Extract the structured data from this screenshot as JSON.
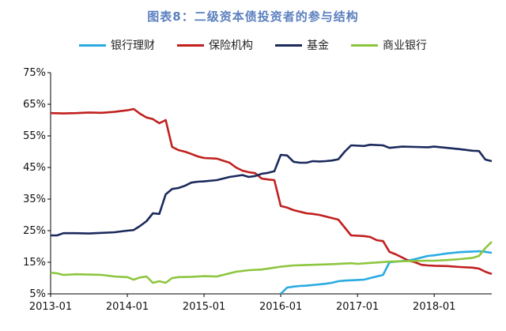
{
  "chart_data": {
    "type": "line",
    "title": "图表8：二级资本债投资者的参与结构",
    "xlabel": "",
    "ylabel": "",
    "x_ticks": [
      "2013-01",
      "2014-01",
      "2015-01",
      "2016-01",
      "2017-01",
      "2018-01"
    ],
    "y_ticks": [
      "5%",
      "15%",
      "25%",
      "35%",
      "45%",
      "55%",
      "65%",
      "75%"
    ],
    "ylim": [
      5,
      75
    ],
    "xlim": [
      "2013-01",
      "2018-10"
    ],
    "grid": false,
    "legend_position": "top",
    "series": [
      {
        "name": "银行理财",
        "color": "#29abe2",
        "points": [
          [
            "2016-01",
            5
          ],
          [
            "2016-02",
            7
          ],
          [
            "2016-03",
            7.3
          ],
          [
            "2016-04",
            7.5
          ],
          [
            "2016-05",
            7.6
          ],
          [
            "2016-06",
            7.8
          ],
          [
            "2016-07",
            8
          ],
          [
            "2016-08",
            8.2
          ],
          [
            "2016-09",
            8.5
          ],
          [
            "2016-10",
            9
          ],
          [
            "2016-11",
            9.2
          ],
          [
            "2016-12",
            9.3
          ],
          [
            "2017-01",
            9.4
          ],
          [
            "2017-02",
            9.5
          ],
          [
            "2017-03",
            10
          ],
          [
            "2017-04",
            10.5
          ],
          [
            "2017-05",
            11
          ],
          [
            "2017-06",
            15
          ],
          [
            "2017-07",
            15.2
          ],
          [
            "2017-08",
            15.4
          ],
          [
            "2017-09",
            15.6
          ],
          [
            "2017-10",
            16
          ],
          [
            "2017-11",
            16.5
          ],
          [
            "2017-12",
            17
          ],
          [
            "2018-01",
            17.2
          ],
          [
            "2018-02",
            17.5
          ],
          [
            "2018-03",
            17.8
          ],
          [
            "2018-04",
            18
          ],
          [
            "2018-05",
            18.2
          ],
          [
            "2018-06",
            18.3
          ],
          [
            "2018-07",
            18.4
          ],
          [
            "2018-08",
            18.5
          ],
          [
            "2018-09",
            18.3
          ],
          [
            "2018-10",
            18
          ]
        ]
      },
      {
        "name": "保险机构",
        "color": "#c0201e",
        "points": [
          [
            "2013-01",
            62.2
          ],
          [
            "2013-03",
            62.1
          ],
          [
            "2013-05",
            62.2
          ],
          [
            "2013-07",
            62.4
          ],
          [
            "2013-09",
            62.3
          ],
          [
            "2013-11",
            62.6
          ],
          [
            "2014-01",
            63.1
          ],
          [
            "2014-02",
            63.5
          ],
          [
            "2014-03",
            62
          ],
          [
            "2014-04",
            60.8
          ],
          [
            "2014-05",
            60.3
          ],
          [
            "2014-06",
            59
          ],
          [
            "2014-07",
            60
          ],
          [
            "2014-08",
            51.5
          ],
          [
            "2014-09",
            50.5
          ],
          [
            "2014-10",
            50
          ],
          [
            "2014-11",
            49.3
          ],
          [
            "2014-12",
            48.5
          ],
          [
            "2015-01",
            48
          ],
          [
            "2015-03",
            47.8
          ],
          [
            "2015-05",
            46.5
          ],
          [
            "2015-06",
            45
          ],
          [
            "2015-07",
            44
          ],
          [
            "2015-08",
            43.5
          ],
          [
            "2015-09",
            43.2
          ],
          [
            "2015-10",
            41.5
          ],
          [
            "2015-11",
            41.2
          ],
          [
            "2015-12",
            41
          ],
          [
            "2016-01",
            32.8
          ],
          [
            "2016-02",
            32.3
          ],
          [
            "2016-03",
            31.5
          ],
          [
            "2016-04",
            31
          ],
          [
            "2016-05",
            30.5
          ],
          [
            "2016-06",
            30.3
          ],
          [
            "2016-07",
            30
          ],
          [
            "2016-08",
            29.5
          ],
          [
            "2016-09",
            29
          ],
          [
            "2016-10",
            28.5
          ],
          [
            "2016-11",
            26
          ],
          [
            "2016-12",
            23.5
          ],
          [
            "2017-02",
            23.3
          ],
          [
            "2017-03",
            23
          ],
          [
            "2017-04",
            22
          ],
          [
            "2017-05",
            21.7
          ],
          [
            "2017-06",
            18.3
          ],
          [
            "2017-07",
            17.5
          ],
          [
            "2017-08",
            16.5
          ],
          [
            "2017-09",
            15.5
          ],
          [
            "2017-10",
            15
          ],
          [
            "2017-11",
            14.2
          ],
          [
            "2017-12",
            14
          ],
          [
            "2018-01",
            13.9
          ],
          [
            "2018-03",
            13.8
          ],
          [
            "2018-05",
            13.5
          ],
          [
            "2018-07",
            13.3
          ],
          [
            "2018-08",
            13
          ],
          [
            "2018-09",
            12
          ],
          [
            "2018-10",
            11.3
          ]
        ]
      },
      {
        "name": "基金",
        "color": "#1b2a5c",
        "points": [
          [
            "2013-01",
            23.5
          ],
          [
            "2013-02",
            23.5
          ],
          [
            "2013-03",
            24.2
          ],
          [
            "2013-05",
            24.2
          ],
          [
            "2013-07",
            24.1
          ],
          [
            "2013-09",
            24.3
          ],
          [
            "2013-11",
            24.5
          ],
          [
            "2014-01",
            25
          ],
          [
            "2014-02",
            25.2
          ],
          [
            "2014-03",
            26.5
          ],
          [
            "2014-04",
            28
          ],
          [
            "2014-05",
            30.5
          ],
          [
            "2014-06",
            30.3
          ],
          [
            "2014-07",
            36.5
          ],
          [
            "2014-08",
            38.2
          ],
          [
            "2014-09",
            38.5
          ],
          [
            "2014-10",
            39.2
          ],
          [
            "2014-11",
            40.2
          ],
          [
            "2014-12",
            40.5
          ],
          [
            "2015-01",
            40.6
          ],
          [
            "2015-03",
            41
          ],
          [
            "2015-05",
            42
          ],
          [
            "2015-07",
            42.6
          ],
          [
            "2015-08",
            42
          ],
          [
            "2015-09",
            42.3
          ],
          [
            "2015-10",
            43
          ],
          [
            "2015-11",
            43.3
          ],
          [
            "2015-12",
            43.8
          ],
          [
            "2016-01",
            49
          ],
          [
            "2016-02",
            48.8
          ],
          [
            "2016-03",
            46.8
          ],
          [
            "2016-04",
            46.5
          ],
          [
            "2016-05",
            46.5
          ],
          [
            "2016-06",
            47
          ],
          [
            "2016-07",
            46.9
          ],
          [
            "2016-08",
            47
          ],
          [
            "2016-09",
            47.2
          ],
          [
            "2016-10",
            47.6
          ],
          [
            "2016-11",
            50
          ],
          [
            "2016-12",
            52
          ],
          [
            "2017-02",
            51.8
          ],
          [
            "2017-03",
            52.2
          ],
          [
            "2017-05",
            52
          ],
          [
            "2017-06",
            51.2
          ],
          [
            "2017-08",
            51.6
          ],
          [
            "2017-10",
            51.5
          ],
          [
            "2017-12",
            51.4
          ],
          [
            "2018-01",
            51.6
          ],
          [
            "2018-03",
            51.2
          ],
          [
            "2018-05",
            50.8
          ],
          [
            "2018-07",
            50.3
          ],
          [
            "2018-08",
            50.2
          ],
          [
            "2018-09",
            47.5
          ],
          [
            "2018-10",
            47
          ]
        ]
      },
      {
        "name": "商业银行",
        "color": "#8dc63f",
        "points": [
          [
            "2013-01",
            11.7
          ],
          [
            "2013-02",
            11.5
          ],
          [
            "2013-03",
            11
          ],
          [
            "2013-05",
            11.2
          ],
          [
            "2013-07",
            11.1
          ],
          [
            "2013-09",
            11
          ],
          [
            "2013-11",
            10.5
          ],
          [
            "2014-01",
            10.3
          ],
          [
            "2014-02",
            9.5
          ],
          [
            "2014-03",
            10.2
          ],
          [
            "2014-04",
            10.5
          ],
          [
            "2014-05",
            8.5
          ],
          [
            "2014-06",
            9
          ],
          [
            "2014-07",
            8.5
          ],
          [
            "2014-08",
            10
          ],
          [
            "2014-09",
            10.3
          ],
          [
            "2014-11",
            10.4
          ],
          [
            "2015-01",
            10.6
          ],
          [
            "2015-03",
            10.5
          ],
          [
            "2015-04",
            11
          ],
          [
            "2015-06",
            12
          ],
          [
            "2015-08",
            12.5
          ],
          [
            "2015-10",
            12.7
          ],
          [
            "2015-12",
            13.3
          ],
          [
            "2016-01",
            13.6
          ],
          [
            "2016-03",
            14
          ],
          [
            "2016-06",
            14.2
          ],
          [
            "2016-09",
            14.4
          ],
          [
            "2016-12",
            14.7
          ],
          [
            "2017-01",
            14.5
          ],
          [
            "2017-03",
            14.8
          ],
          [
            "2017-06",
            15.2
          ],
          [
            "2017-09",
            15.4
          ],
          [
            "2017-12",
            15.5
          ],
          [
            "2018-01",
            15.5
          ],
          [
            "2018-03",
            15.7
          ],
          [
            "2018-05",
            16
          ],
          [
            "2018-07",
            16.4
          ],
          [
            "2018-08",
            17
          ],
          [
            "2018-09",
            19.5
          ],
          [
            "2018-10",
            21.5
          ]
        ]
      }
    ]
  }
}
